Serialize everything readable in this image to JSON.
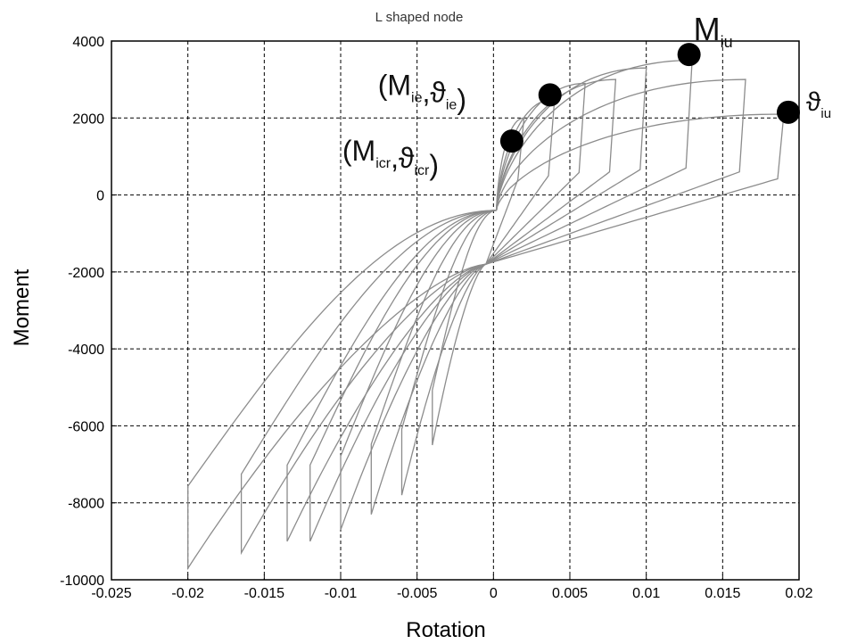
{
  "chart_data": {
    "type": "line",
    "title": "L shaped node",
    "xlabel": "Rotation",
    "ylabel": "Moment",
    "xlim": [
      -0.025,
      0.02
    ],
    "ylim": [
      -10000,
      4000
    ],
    "xticks": [
      -0.025,
      -0.02,
      -0.015,
      -0.01,
      -0.005,
      0,
      0.005,
      0.01,
      0.015,
      0.02
    ],
    "xtick_labels": [
      "-0.025",
      "-0.02",
      "-0.015",
      "-0.01",
      "-0.005",
      "0",
      "0.005",
      "0.01",
      "0.015",
      "0.02"
    ],
    "yticks": [
      4000,
      2000,
      0,
      -2000,
      -4000,
      -6000,
      -8000,
      -10000
    ],
    "ytick_labels": [
      "4000",
      "2000",
      "0",
      "-2000",
      "-4000",
      "-6000",
      "-8000",
      "-10000"
    ],
    "grid": true,
    "grid_style": "dashed",
    "line_color": "#8c8c8c",
    "series": [
      {
        "peak_x": 0.002,
        "peak_y": 2000,
        "min_x": -0.004,
        "min_y": -6500
      },
      {
        "peak_x": 0.004,
        "peak_y": 2500,
        "min_x": -0.006,
        "min_y": -7800
      },
      {
        "peak_x": 0.006,
        "peak_y": 2900,
        "min_x": -0.008,
        "min_y": -8300
      },
      {
        "peak_x": 0.008,
        "peak_y": 3000,
        "min_x": -0.01,
        "min_y": -8700
      },
      {
        "peak_x": 0.01,
        "peak_y": 3300,
        "min_x": -0.012,
        "min_y": -9000
      },
      {
        "peak_x": 0.013,
        "peak_y": 3500,
        "min_x": -0.0135,
        "min_y": -9000
      },
      {
        "peak_x": 0.0165,
        "peak_y": 3000,
        "min_x": -0.0165,
        "min_y": -9300
      },
      {
        "peak_x": 0.019,
        "peak_y": 2100,
        "min_x": -0.02,
        "min_y": -9700
      }
    ],
    "markers": [
      {
        "label_main": "(M",
        "label_sub": "icr",
        "label_sep": ",ϑ",
        "label_sub2": "icr",
        "label_end": ")",
        "x": 0.0012,
        "y": 1400
      },
      {
        "label_main": "(M",
        "label_sub": "ie",
        "label_sep": ",ϑ",
        "label_sub2": "ie",
        "label_end": ")",
        "x": 0.0037,
        "y": 2600
      },
      {
        "label_main": "M",
        "label_sub": "iu",
        "x": 0.0128,
        "y": 3650
      },
      {
        "label_main": "ϑ",
        "label_sub": "iu",
        "x": 0.0193,
        "y": 2150
      }
    ]
  }
}
